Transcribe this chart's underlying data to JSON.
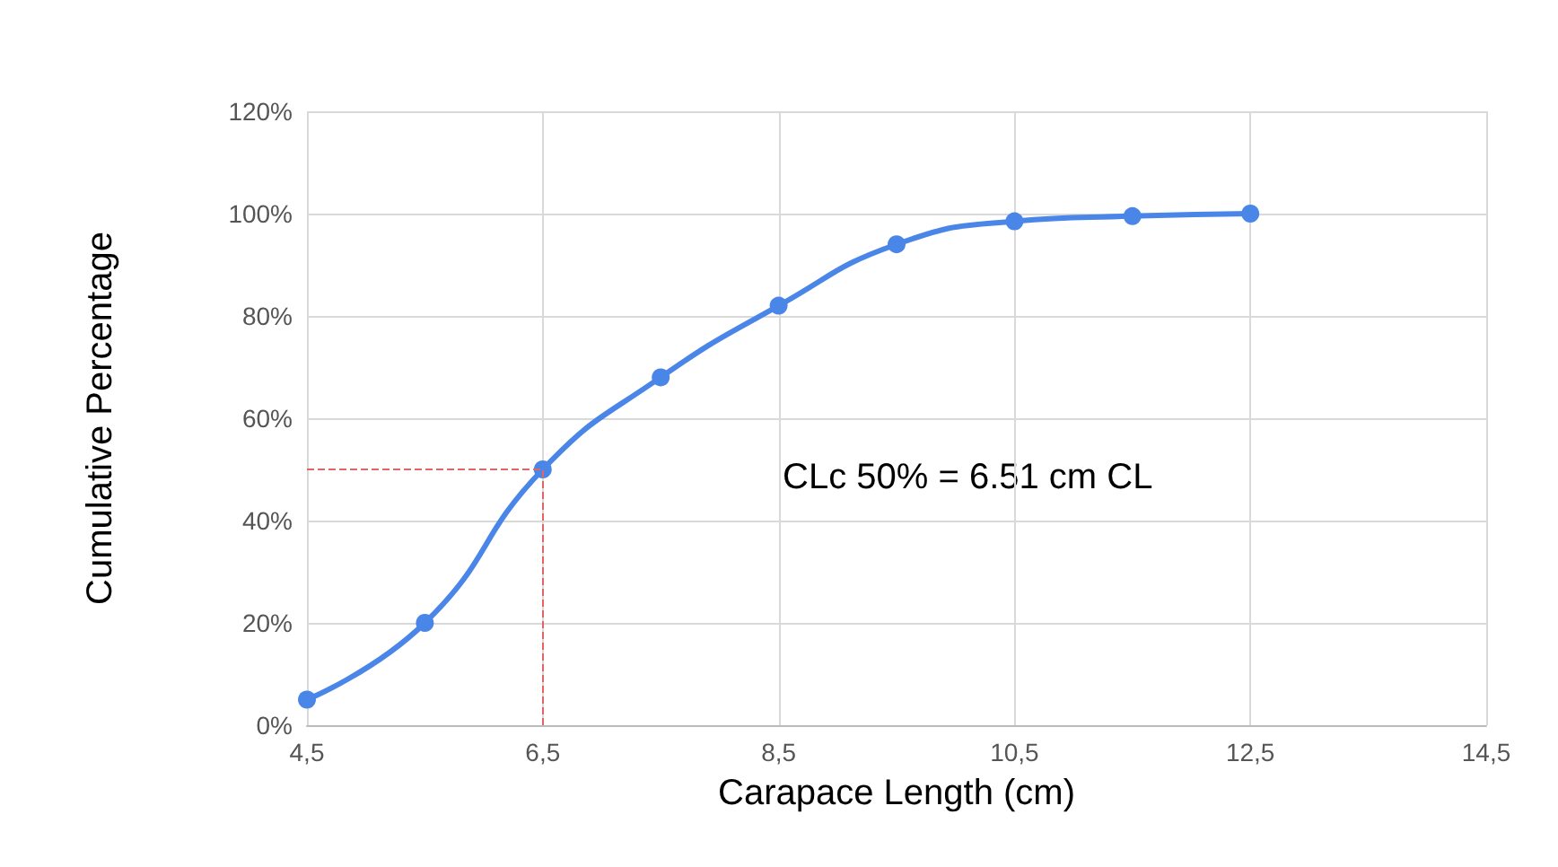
{
  "chart_data": {
    "type": "line",
    "xlabel": "Carapace Length (cm)",
    "ylabel": "Cumulative Percentage",
    "x": [
      4.5,
      5.5,
      6.5,
      7.5,
      8.5,
      9.5,
      10.5,
      11.5,
      12.5
    ],
    "series": [
      {
        "color": "#4a86e8",
        "values": [
          5,
          20,
          50,
          68,
          82,
          94,
          98.5,
          99.5,
          100
        ]
      }
    ],
    "xlim": [
      4.5,
      14.5
    ],
    "xticks": [
      {
        "value": 4.5,
        "label": "4,5"
      },
      {
        "value": 6.5,
        "label": "6,5"
      },
      {
        "value": 8.5,
        "label": "8,5"
      },
      {
        "value": 10.5,
        "label": "10,5"
      },
      {
        "value": 12.5,
        "label": "12,5"
      },
      {
        "value": 14.5,
        "label": "14,5"
      }
    ],
    "ylim": [
      0,
      120
    ],
    "yticks": [
      {
        "value": 0,
        "label": "0%"
      },
      {
        "value": 20,
        "label": "20%"
      },
      {
        "value": 40,
        "label": "40%"
      },
      {
        "value": 60,
        "label": "60%"
      },
      {
        "value": 80,
        "label": "80%"
      },
      {
        "value": 100,
        "label": "100%"
      },
      {
        "value": 120,
        "label": "120%"
      }
    ],
    "ref_lines": [
      {
        "axis": "y",
        "value": 50,
        "color": "#e06666",
        "line_style": "dashed"
      },
      {
        "axis": "x",
        "value": 6.5,
        "color": "#e06666",
        "line_style": "dashed"
      }
    ],
    "annotations": [
      "CLc 50% = 6.51 cm CL"
    ],
    "grid": true,
    "marker": "circle",
    "line_style": "solid"
  }
}
